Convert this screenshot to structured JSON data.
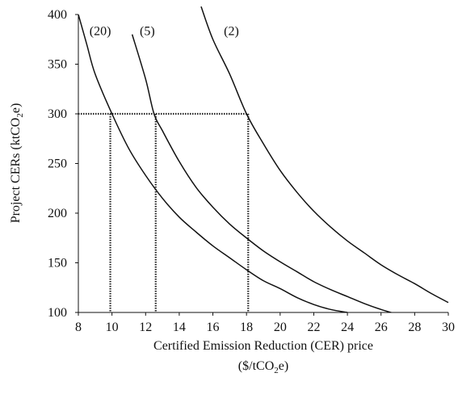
{
  "chart_data": {
    "type": "line",
    "xlabel_line1": "Certified Emission Reduction (CER) price",
    "xlabel_line2_pre": "($/tCO",
    "xlabel_line2_sub": "2",
    "xlabel_line2_post": "e)",
    "ylabel_pre": "Project CERs (ktCO",
    "ylabel_sub": "2",
    "ylabel_post": "e)",
    "xlim": [
      8,
      30
    ],
    "ylim": [
      100,
      400
    ],
    "x_ticks": [
      8,
      10,
      12,
      14,
      16,
      18,
      20,
      22,
      24,
      26,
      28,
      30
    ],
    "y_ticks": [
      100,
      150,
      200,
      250,
      300,
      350,
      400
    ],
    "grid": false,
    "series": [
      {
        "name": "(20)",
        "x": [
          8,
          8.5,
          9,
          10,
          11,
          12,
          13,
          14,
          15,
          16,
          17,
          18,
          19,
          20,
          21,
          22,
          23,
          24
        ],
        "y": [
          400,
          370,
          340,
          300,
          265,
          238,
          215,
          196,
          181,
          167,
          155,
          143,
          132,
          124,
          115,
          108,
          103,
          100
        ]
      },
      {
        "name": "(5)",
        "x": [
          11.2,
          12,
          12.5,
          13,
          14,
          15,
          16,
          17,
          18,
          19,
          20,
          21,
          22,
          23,
          24,
          25,
          26,
          27
        ],
        "y": [
          380,
          335,
          300,
          283,
          252,
          226,
          206,
          189,
          175,
          162,
          151,
          141,
          131,
          123,
          116,
          109,
          103,
          98
        ]
      },
      {
        "name": "(2)",
        "x": [
          15.3,
          16,
          17,
          18,
          19,
          20,
          21,
          22,
          23,
          24,
          25,
          26,
          27,
          28,
          29,
          30
        ],
        "y": [
          408,
          375,
          340,
          300,
          270,
          243,
          221,
          202,
          186,
          172,
          160,
          148,
          138,
          129,
          119,
          110
        ]
      }
    ],
    "reference_level_y": 300,
    "reference_x": [
      9.9,
      12.6,
      18.1
    ],
    "curve_labels": [
      {
        "text": "(20)",
        "x": 9.3,
        "y": 384
      },
      {
        "text": "(5)",
        "x": 12.1,
        "y": 384
      },
      {
        "text": "(2)",
        "x": 17.1,
        "y": 384
      }
    ]
  }
}
